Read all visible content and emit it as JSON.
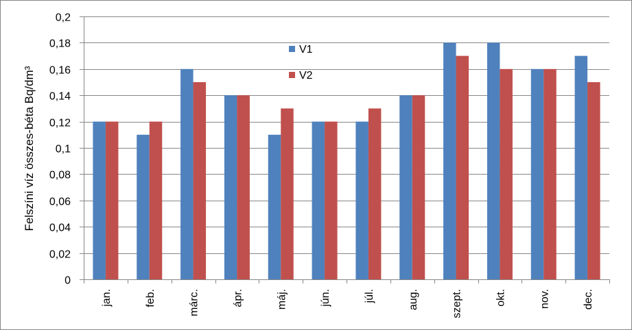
{
  "chart_data": {
    "type": "bar",
    "title": "",
    "xlabel": "",
    "ylabel": "Felszíni víz összes-béta Bq/dm³",
    "ylim": [
      0,
      0.2
    ],
    "yticks": [
      "0",
      "0,02",
      "0,04",
      "0,06",
      "0,08",
      "0,1",
      "0,12",
      "0,14",
      "0,16",
      "0,18",
      "0,2"
    ],
    "grid": true,
    "legend_position": "top-center",
    "categories": [
      "jan.",
      "feb.",
      "márc.",
      "ápr.",
      "máj.",
      "jún.",
      "júl.",
      "aug.",
      "szept.",
      "okt.",
      "nov.",
      "dec."
    ],
    "series": [
      {
        "name": "V1",
        "color": "#4F81BD",
        "values": [
          0.12,
          0.11,
          0.16,
          0.14,
          0.11,
          0.12,
          0.12,
          0.14,
          0.18,
          0.18,
          0.16,
          0.17
        ]
      },
      {
        "name": "V2",
        "color": "#C0504D",
        "values": [
          0.12,
          0.12,
          0.15,
          0.14,
          0.13,
          0.12,
          0.13,
          0.14,
          0.17,
          0.16,
          0.16,
          0.15
        ]
      }
    ]
  }
}
